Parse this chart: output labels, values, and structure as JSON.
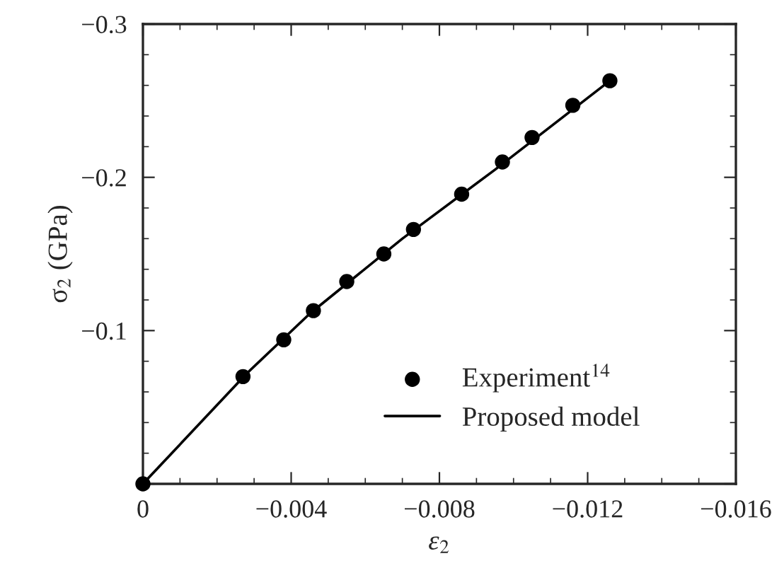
{
  "chart_data": {
    "type": "scatter",
    "xlabel": "ε$_{2}$",
    "ylabel": "σ$_{2}$ (GPa)",
    "xlim": [
      0,
      -0.016
    ],
    "ylim": [
      0,
      -0.3
    ],
    "xticks": [
      0,
      {
        "value": -0.004,
        "label": "−0.004"
      },
      {
        "value": -0.008,
        "label": "−0.008"
      },
      {
        "value": -0.012,
        "label": "−0.012"
      },
      {
        "value": -0.016,
        "label": "−0.016"
      }
    ],
    "yticks": [
      {
        "value": 0,
        "label": null
      },
      {
        "value": -0.1,
        "label": "−0.1"
      },
      {
        "value": -0.2,
        "label": "−0.2"
      },
      {
        "value": -0.3,
        "label": "−0.3"
      }
    ],
    "legend": "bottom right",
    "series": [
      {
        "name": "Experiment$^{14}$",
        "marker": "circle",
        "color": "#000000",
        "x": [
          0,
          -0.0027,
          -0.0038,
          -0.0046,
          -0.0055,
          -0.0065,
          -0.0073,
          -0.0086,
          -0.0097,
          -0.0105,
          -0.0116,
          -0.0126
        ],
        "values": [
          0,
          -0.07,
          -0.094,
          -0.113,
          -0.132,
          -0.15,
          -0.166,
          -0.189,
          -0.21,
          -0.226,
          -0.247,
          -0.263
        ]
      },
      {
        "name": "Proposed model",
        "type": "line",
        "marker": "none",
        "line_style": "solid",
        "color": "#000000",
        "x": [
          0,
          -0.0028,
          -0.0045,
          -0.007,
          -0.0095,
          -0.0126
        ],
        "values": [
          0,
          -0.072,
          -0.111,
          -0.16,
          -0.205,
          -0.263
        ]
      }
    ]
  }
}
